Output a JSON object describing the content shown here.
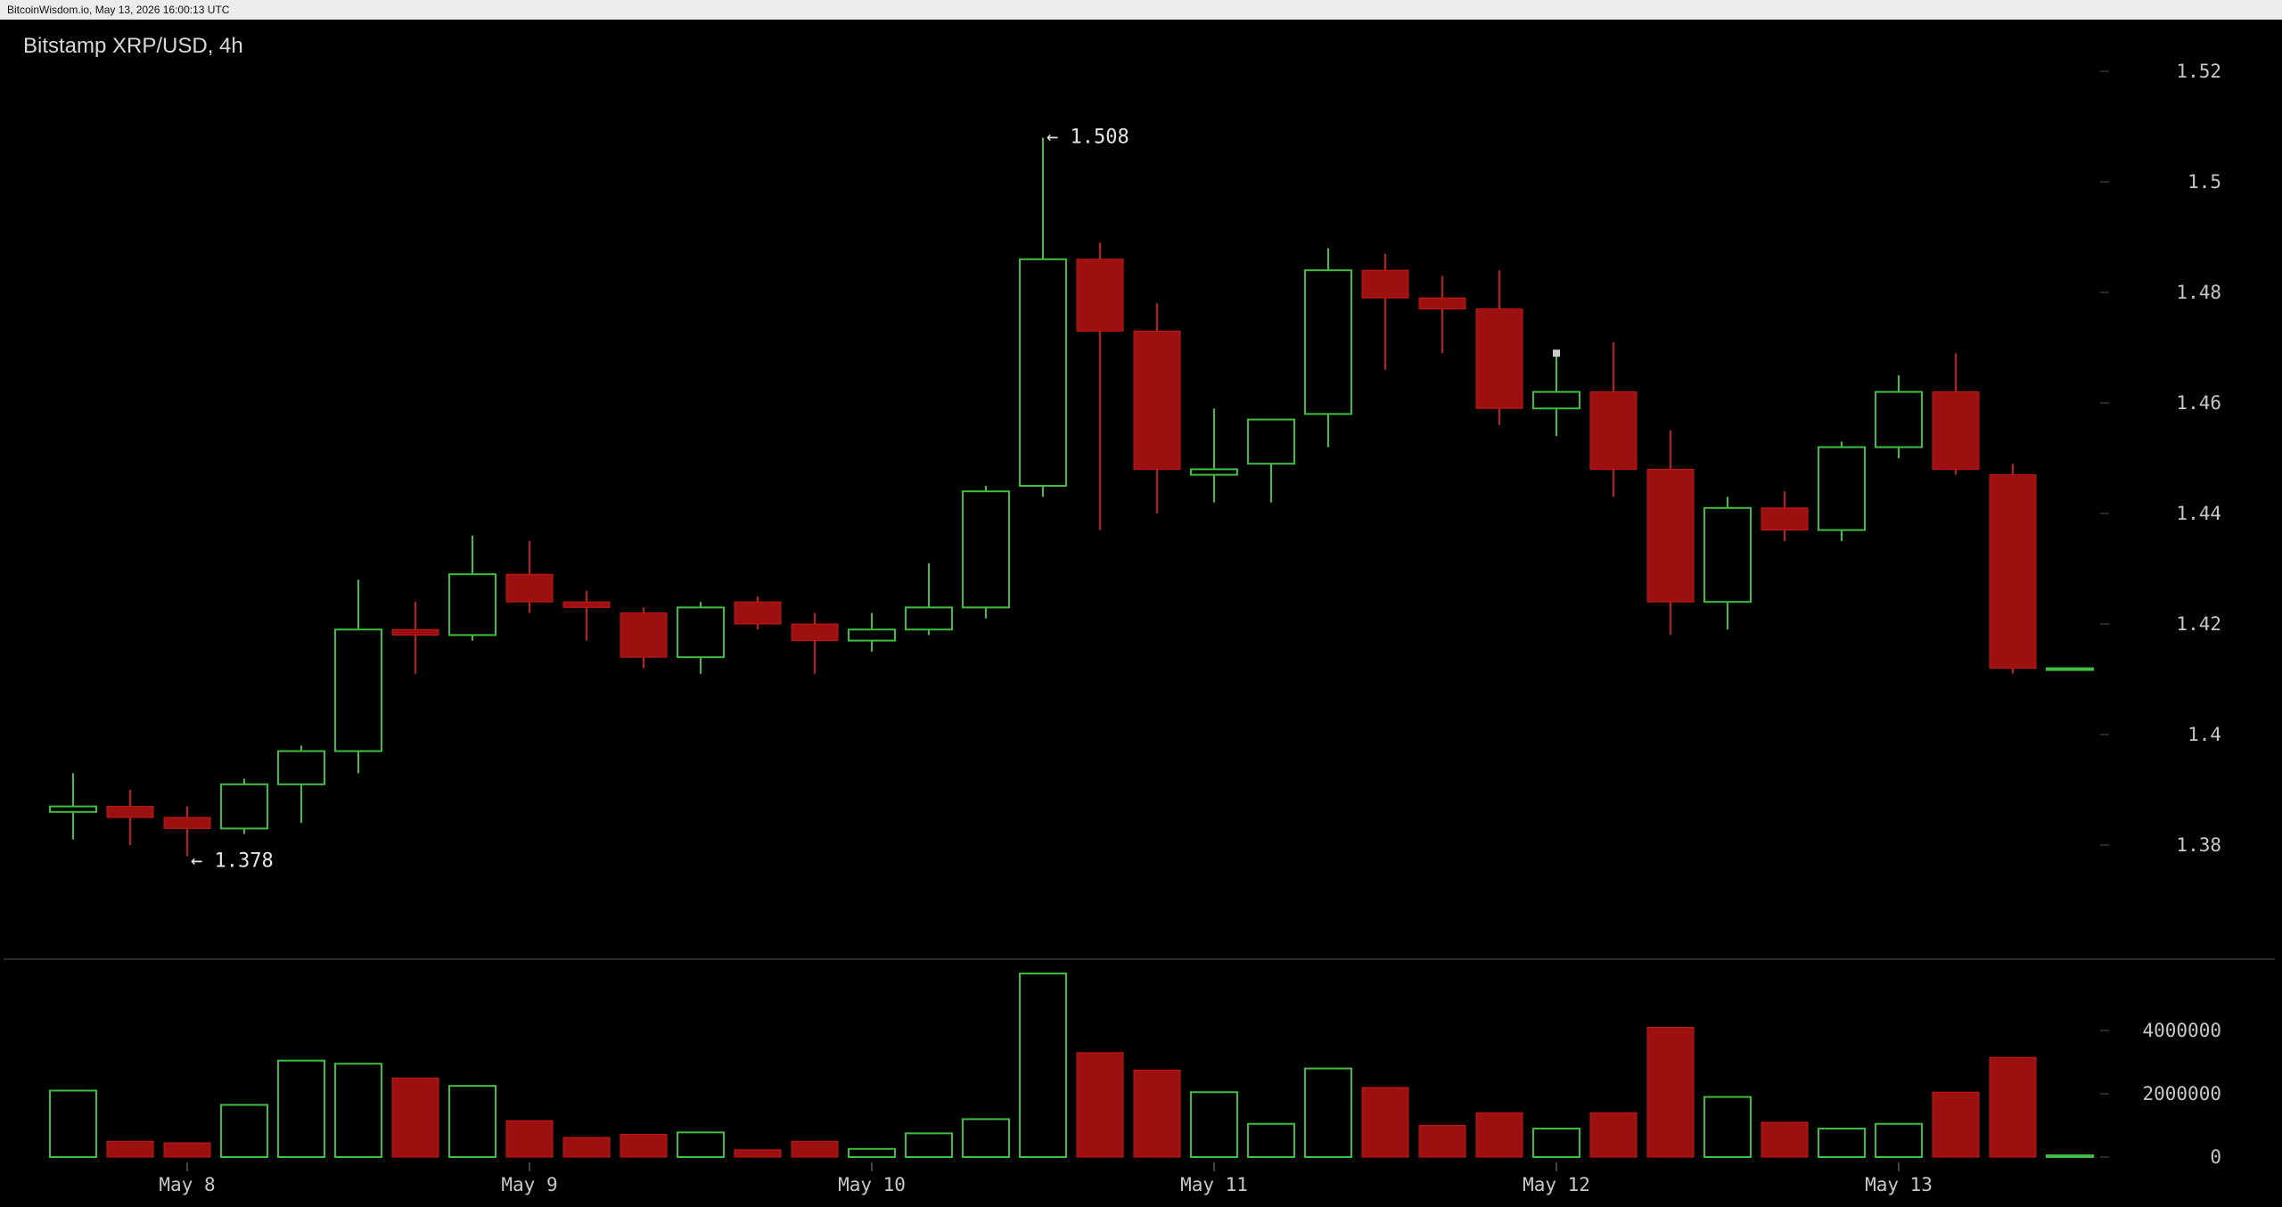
{
  "header": {
    "watermark": "BitcoinWisdom.io, May 13, 2026 16:00:13 UTC"
  },
  "chart_title": "Bitstamp XRP/USD, 4h",
  "colors": {
    "up": "#3fbf3f",
    "down": "#9c1010",
    "down_edge": "#c81a1a",
    "background": "#000000",
    "axis_text": "#c8c8c8"
  },
  "chart_data": [
    {
      "type": "candlestick",
      "title": "Bitstamp XRP/USD, 4h",
      "x_tick_labels": [
        "May 8",
        "May 9",
        "May 10",
        "May 11",
        "May 12",
        "May 13"
      ],
      "y_ticks": [
        1.38,
        1.4,
        1.42,
        1.44,
        1.46,
        1.48,
        1.5,
        1.52
      ],
      "y_tick_labels": [
        "1.38",
        "1.4",
        "1.42",
        "1.44",
        "1.46",
        "1.48",
        "1.5",
        "1.52"
      ],
      "ylim": [
        1.35,
        1.54
      ],
      "annotations": [
        {
          "label": "← 1.508",
          "candle": 17,
          "value": 1.508
        },
        {
          "label": "← 1.378",
          "candle": 2,
          "value": 1.378
        }
      ],
      "candles": [
        {
          "o": 1.386,
          "h": 1.393,
          "l": 1.381,
          "c": 1.387
        },
        {
          "o": 1.387,
          "h": 1.39,
          "l": 1.38,
          "c": 1.385
        },
        {
          "o": 1.385,
          "h": 1.387,
          "l": 1.378,
          "c": 1.383
        },
        {
          "o": 1.383,
          "h": 1.392,
          "l": 1.382,
          "c": 1.391
        },
        {
          "o": 1.391,
          "h": 1.398,
          "l": 1.384,
          "c": 1.397
        },
        {
          "o": 1.397,
          "h": 1.428,
          "l": 1.393,
          "c": 1.419
        },
        {
          "o": 1.419,
          "h": 1.424,
          "l": 1.411,
          "c": 1.418
        },
        {
          "o": 1.418,
          "h": 1.436,
          "l": 1.417,
          "c": 1.429
        },
        {
          "o": 1.429,
          "h": 1.435,
          "l": 1.422,
          "c": 1.424
        },
        {
          "o": 1.424,
          "h": 1.426,
          "l": 1.417,
          "c": 1.423
        },
        {
          "o": 1.422,
          "h": 1.423,
          "l": 1.412,
          "c": 1.414
        },
        {
          "o": 1.414,
          "h": 1.424,
          "l": 1.411,
          "c": 1.423
        },
        {
          "o": 1.424,
          "h": 1.425,
          "l": 1.419,
          "c": 1.42
        },
        {
          "o": 1.42,
          "h": 1.422,
          "l": 1.411,
          "c": 1.417
        },
        {
          "o": 1.417,
          "h": 1.422,
          "l": 1.415,
          "c": 1.419
        },
        {
          "o": 1.419,
          "h": 1.431,
          "l": 1.418,
          "c": 1.423
        },
        {
          "o": 1.423,
          "h": 1.445,
          "l": 1.421,
          "c": 1.444
        },
        {
          "o": 1.445,
          "h": 1.508,
          "l": 1.443,
          "c": 1.486
        },
        {
          "o": 1.486,
          "h": 1.489,
          "l": 1.437,
          "c": 1.473
        },
        {
          "o": 1.473,
          "h": 1.478,
          "l": 1.44,
          "c": 1.448
        },
        {
          "o": 1.447,
          "h": 1.459,
          "l": 1.442,
          "c": 1.448
        },
        {
          "o": 1.449,
          "h": 1.457,
          "l": 1.442,
          "c": 1.457
        },
        {
          "o": 1.458,
          "h": 1.488,
          "l": 1.452,
          "c": 1.484
        },
        {
          "o": 1.484,
          "h": 1.487,
          "l": 1.466,
          "c": 1.479
        },
        {
          "o": 1.479,
          "h": 1.483,
          "l": 1.469,
          "c": 1.477
        },
        {
          "o": 1.477,
          "h": 1.484,
          "l": 1.456,
          "c": 1.459
        },
        {
          "o": 1.459,
          "h": 1.469,
          "l": 1.454,
          "c": 1.462
        },
        {
          "o": 1.462,
          "h": 1.471,
          "l": 1.443,
          "c": 1.448
        },
        {
          "o": 1.448,
          "h": 1.455,
          "l": 1.418,
          "c": 1.424
        },
        {
          "o": 1.424,
          "h": 1.443,
          "l": 1.419,
          "c": 1.441
        },
        {
          "o": 1.441,
          "h": 1.444,
          "l": 1.435,
          "c": 1.437
        },
        {
          "o": 1.437,
          "h": 1.453,
          "l": 1.435,
          "c": 1.452
        },
        {
          "o": 1.452,
          "h": 1.465,
          "l": 1.45,
          "c": 1.462
        },
        {
          "o": 1.462,
          "h": 1.469,
          "l": 1.447,
          "c": 1.448
        },
        {
          "o": 1.447,
          "h": 1.449,
          "l": 1.411,
          "c": 1.412
        },
        {
          "o": 1.412,
          "h": 1.412,
          "l": 1.412,
          "c": 1.412
        }
      ]
    },
    {
      "type": "bar",
      "title": "",
      "y_ticks": [
        0,
        2000000,
        4000000
      ],
      "y_tick_labels": [
        "0",
        "2000000",
        "4000000"
      ],
      "ylim": [
        0,
        6000000
      ],
      "values": [
        2100000,
        500000,
        450000,
        1650000,
        3050000,
        2950000,
        2500000,
        2250000,
        1150000,
        620000,
        720000,
        780000,
        230000,
        500000,
        260000,
        750000,
        1200000,
        5800000,
        3300000,
        2750000,
        2050000,
        1050000,
        2800000,
        2200000,
        1000000,
        1400000,
        900000,
        1400000,
        4100000,
        1900000,
        1100000,
        900000,
        1050000,
        2050000,
        3150000,
        20000
      ]
    }
  ]
}
